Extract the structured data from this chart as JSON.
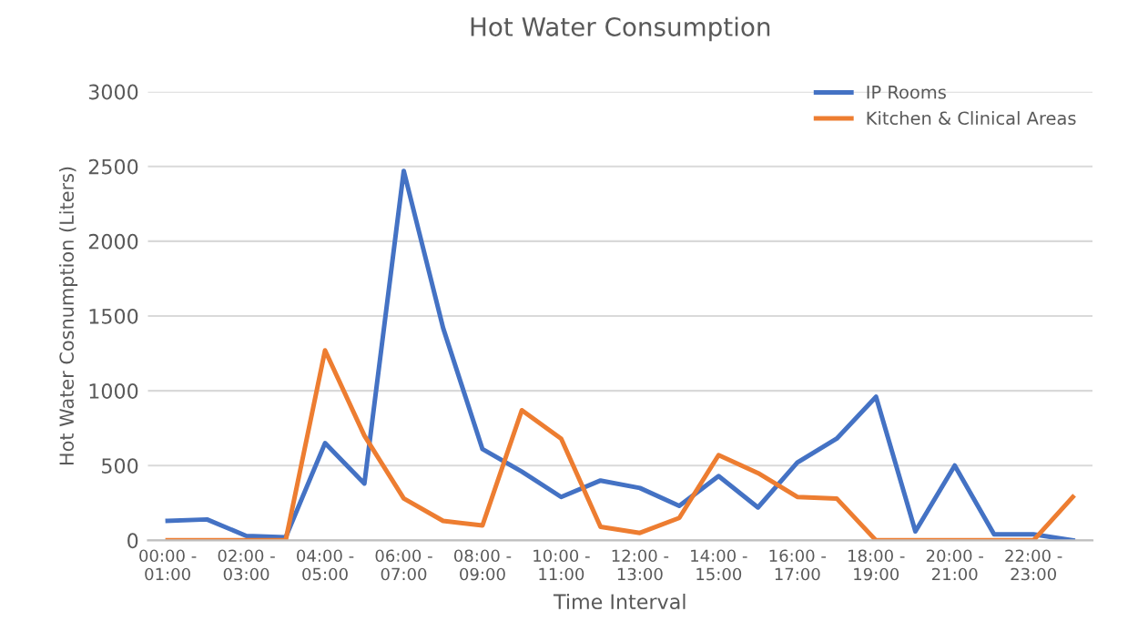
{
  "chart_data": {
    "type": "line",
    "title": "Hot Water Consumption",
    "xlabel": "Time Interval",
    "ylabel": "Hot Water Cosnumption (Liters)",
    "categories": [
      "00:00 -\n01:00",
      null,
      "02:00 -\n03:00",
      null,
      "04:00 -\n05:00",
      null,
      "06:00 -\n07:00",
      null,
      "08:00 -\n09:00",
      null,
      "10:00 -\n11:00",
      null,
      "12:00 -\n13:00",
      null,
      "14:00 -\n15:00",
      null,
      "16:00 -\n17:00",
      null,
      "18:00 -\n19:00",
      null,
      "20:00 -\n21:00",
      null,
      "22:00 -\n23:00",
      null
    ],
    "series": [
      {
        "name": "IP Rooms",
        "color": "#4472c4",
        "values": [
          130,
          140,
          30,
          20,
          650,
          380,
          2470,
          1420,
          610,
          460,
          290,
          400,
          350,
          230,
          430,
          220,
          520,
          680,
          960,
          60,
          500,
          40,
          40,
          0
        ]
      },
      {
        "name": "Kitchen & Clinical Areas",
        "color": "#ed7d31",
        "values": [
          0,
          0,
          0,
          0,
          1270,
          700,
          280,
          130,
          100,
          870,
          680,
          90,
          50,
          150,
          570,
          450,
          290,
          280,
          0,
          0,
          0,
          0,
          0,
          290
        ]
      }
    ],
    "ylim": [
      0,
      3000
    ],
    "yticks": [
      0,
      500,
      1000,
      1500,
      2000,
      2500,
      3000
    ],
    "grid": "y",
    "legend": "top right",
    "marker": "none",
    "line_style": "solid"
  }
}
